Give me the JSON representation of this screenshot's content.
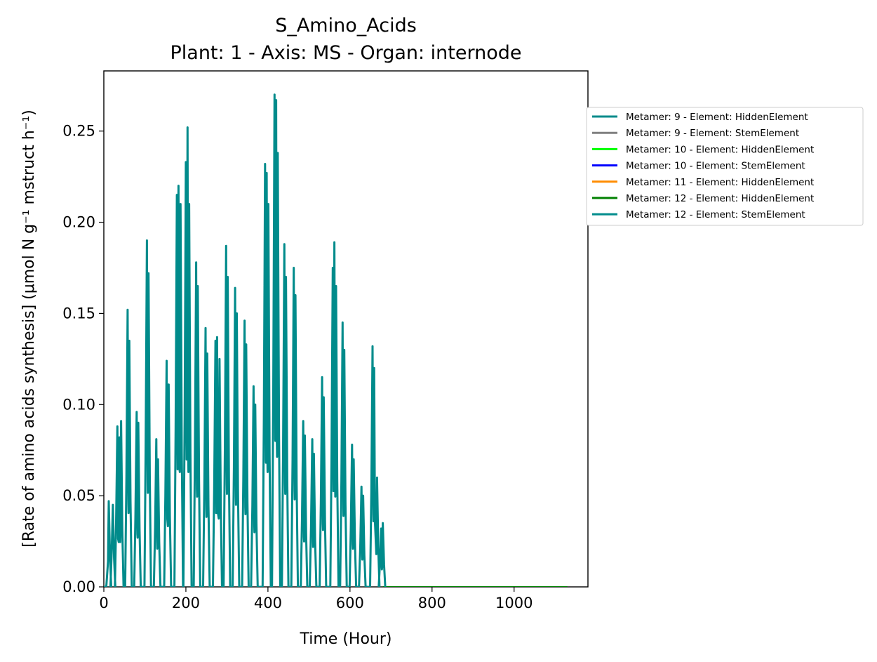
{
  "chart_data": {
    "type": "line",
    "title_line1": "S_Amino_Acids",
    "title_line2": "Plant: 1 - Axis: MS - Organ: internode",
    "xlabel": "Time (Hour)",
    "ylabel": "[Rate of amino acids synthesis] (μmol N g⁻¹ mstruct h⁻¹)",
    "xlim": [
      0,
      1180
    ],
    "ylim": [
      0,
      0.283
    ],
    "xticks": [
      0,
      200,
      400,
      600,
      800,
      1000
    ],
    "xtick_labels": [
      "0",
      "200",
      "400",
      "600",
      "800",
      "1000"
    ],
    "yticks": [
      0,
      0.05,
      0.1,
      0.15,
      0.2,
      0.25
    ],
    "ytick_labels": [
      "0.00",
      "0.05",
      "0.10",
      "0.15",
      "0.20",
      "0.25"
    ],
    "grid": false,
    "legend_position": "outside-right",
    "series": [
      {
        "name": "Metamer: 9 - Element: HiddenElement",
        "color": "#008b8b",
        "peaks": [
          [
            12,
            0.047
          ],
          [
            22,
            0.045
          ],
          [
            33,
            0.088
          ],
          [
            38,
            0.082
          ],
          [
            42,
            0.091
          ],
          [
            58,
            0.152
          ],
          [
            62,
            0.135
          ],
          [
            80,
            0.096
          ],
          [
            84,
            0.09
          ],
          [
            105,
            0.19
          ],
          [
            109,
            0.172
          ],
          [
            128,
            0.081
          ],
          [
            132,
            0.07
          ],
          [
            153,
            0.124
          ],
          [
            158,
            0.111
          ],
          [
            178,
            0.215
          ],
          [
            182,
            0.22
          ],
          [
            187,
            0.21
          ],
          [
            200,
            0.233
          ],
          [
            204,
            0.252
          ],
          [
            208,
            0.21
          ],
          [
            225,
            0.178
          ],
          [
            229,
            0.165
          ],
          [
            248,
            0.142
          ],
          [
            252,
            0.128
          ],
          [
            272,
            0.135
          ],
          [
            276,
            0.137
          ],
          [
            282,
            0.125
          ],
          [
            298,
            0.187
          ],
          [
            302,
            0.17
          ],
          [
            320,
            0.164
          ],
          [
            324,
            0.15
          ],
          [
            343,
            0.146
          ],
          [
            347,
            0.133
          ],
          [
            365,
            0.11
          ],
          [
            369,
            0.1
          ],
          [
            393,
            0.232
          ],
          [
            397,
            0.227
          ],
          [
            401,
            0.21
          ],
          [
            416,
            0.27
          ],
          [
            420,
            0.267
          ],
          [
            424,
            0.238
          ],
          [
            440,
            0.188
          ],
          [
            444,
            0.17
          ],
          [
            463,
            0.175
          ],
          [
            467,
            0.16
          ],
          [
            486,
            0.091
          ],
          [
            490,
            0.083
          ],
          [
            508,
            0.081
          ],
          [
            512,
            0.073
          ],
          [
            532,
            0.115
          ],
          [
            536,
            0.104
          ],
          [
            558,
            0.175
          ],
          [
            562,
            0.189
          ],
          [
            566,
            0.165
          ],
          [
            582,
            0.145
          ],
          [
            586,
            0.13
          ],
          [
            605,
            0.078
          ],
          [
            609,
            0.07
          ],
          [
            628,
            0.055
          ],
          [
            632,
            0.05
          ],
          [
            655,
            0.132
          ],
          [
            659,
            0.12
          ],
          [
            666,
            0.06
          ],
          [
            676,
            0.032
          ],
          [
            680,
            0.035
          ]
        ]
      },
      {
        "name": "Metamer: 9 - Element: StemElement",
        "color": "#808080"
      },
      {
        "name": "Metamer: 10 - Element: HiddenElement",
        "color": "#00ff00"
      },
      {
        "name": "Metamer: 10 - Element: StemElement",
        "color": "#0000ff"
      },
      {
        "name": "Metamer: 11 - Element: HiddenElement",
        "color": "#ff8c00"
      },
      {
        "name": "Metamer: 12 - Element: HiddenElement",
        "color": "#008000",
        "x_range": [
          680,
          1130
        ],
        "value": 0.0
      },
      {
        "name": "Metamer: 12 - Element: StemElement",
        "color": "#008b8b"
      }
    ]
  }
}
